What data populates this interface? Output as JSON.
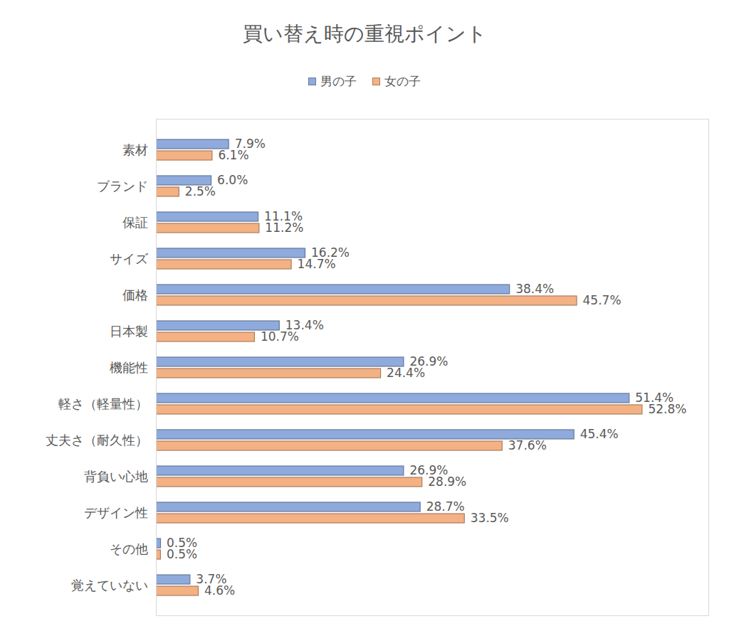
{
  "chart_data": {
    "type": "bar",
    "title": "買い替え時の重視ポイント",
    "orientation": "horizontal",
    "data_labels": true,
    "tick_labels": "y",
    "grid": false,
    "legend": "top",
    "categories": [
      "素材",
      "ブランド",
      "保証",
      "サイズ",
      "価格",
      "日本製",
      "機能性",
      "軽さ（軽量性）",
      "丈夫さ（耐久性）",
      "背負い心地",
      "デザイン性",
      "その他",
      "覚えていない"
    ],
    "xlim": [
      0,
      60
    ],
    "xticks": [],
    "series": [
      {
        "name": "男の子",
        "color": "#8faadc",
        "values": [
          7.9,
          6.0,
          11.1,
          16.2,
          38.4,
          13.4,
          26.9,
          51.4,
          45.4,
          26.9,
          28.7,
          0.5,
          3.7
        ],
        "value_labels": [
          "7.9%",
          "6.0%",
          "11.1%",
          "16.2%",
          "38.4%",
          "13.4%",
          "26.9%",
          "51.4%",
          "45.4%",
          "26.9%",
          "28.7%",
          "0.5%",
          "3.7%"
        ]
      },
      {
        "name": "女の子",
        "color": "#f4b183",
        "values": [
          6.1,
          2.5,
          11.2,
          14.7,
          45.7,
          10.7,
          24.4,
          52.8,
          37.6,
          28.9,
          33.5,
          0.5,
          4.6
        ],
        "value_labels": [
          "6.1%",
          "2.5%",
          "11.2%",
          "14.7%",
          "45.7%",
          "10.7%",
          "24.4%",
          "52.8%",
          "37.6%",
          "28.9%",
          "33.5%",
          "0.5%",
          "4.6%"
        ]
      }
    ]
  }
}
